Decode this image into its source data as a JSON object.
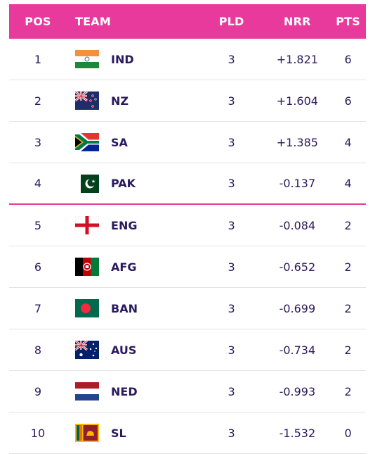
{
  "header": {
    "pos": "POS",
    "team": "TEAM",
    "pld": "PLD",
    "nrr": "NRR",
    "pts": "PTS"
  },
  "colors": {
    "accent": "#e8399d",
    "text": "#2a1a5e"
  },
  "rows": [
    {
      "pos": "1",
      "team": "IND",
      "flag": "india-flag-icon",
      "pld": "3",
      "nrr": "+1.821",
      "pts": "6"
    },
    {
      "pos": "2",
      "team": "NZ",
      "flag": "new-zealand-flag-icon",
      "pld": "3",
      "nrr": "+1.604",
      "pts": "6"
    },
    {
      "pos": "3",
      "team": "SA",
      "flag": "south-africa-flag-icon",
      "pld": "3",
      "nrr": "+1.385",
      "pts": "4"
    },
    {
      "pos": "4",
      "team": "PAK",
      "flag": "pakistan-flag-icon",
      "pld": "3",
      "nrr": "-0.137",
      "pts": "4"
    },
    {
      "pos": "5",
      "team": "ENG",
      "flag": "england-flag-icon",
      "pld": "3",
      "nrr": "-0.084",
      "pts": "2"
    },
    {
      "pos": "6",
      "team": "AFG",
      "flag": "afghanistan-flag-icon",
      "pld": "3",
      "nrr": "-0.652",
      "pts": "2"
    },
    {
      "pos": "7",
      "team": "BAN",
      "flag": "bangladesh-flag-icon",
      "pld": "3",
      "nrr": "-0.699",
      "pts": "2"
    },
    {
      "pos": "8",
      "team": "AUS",
      "flag": "australia-flag-icon",
      "pld": "3",
      "nrr": "-0.734",
      "pts": "2"
    },
    {
      "pos": "9",
      "team": "NED",
      "flag": "netherlands-flag-icon",
      "pld": "3",
      "nrr": "-0.993",
      "pts": "2"
    },
    {
      "pos": "10",
      "team": "SL",
      "flag": "sri-lanka-flag-icon",
      "pld": "3",
      "nrr": "-1.532",
      "pts": "0"
    }
  ]
}
